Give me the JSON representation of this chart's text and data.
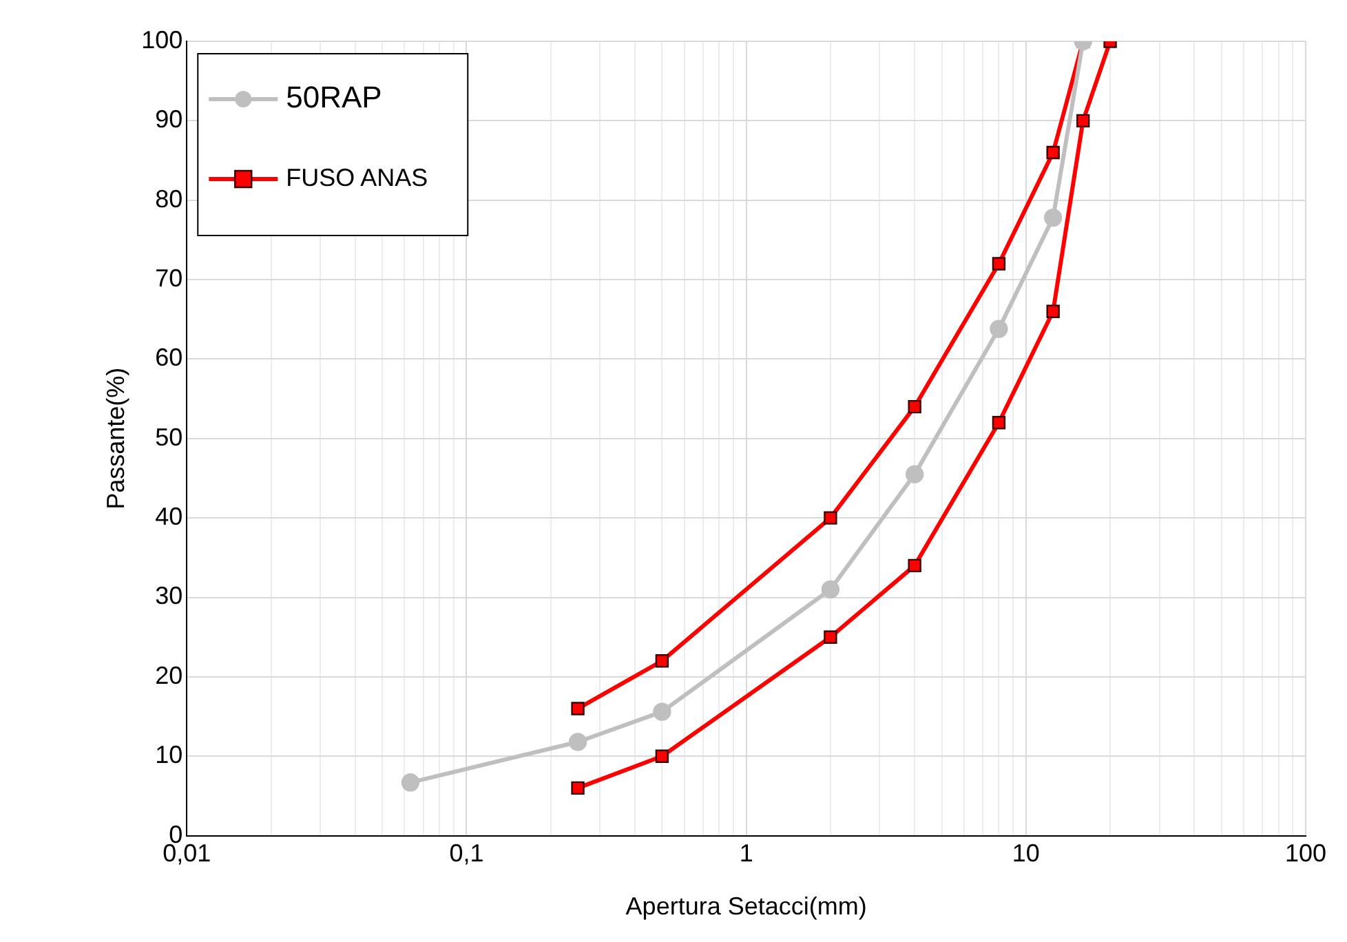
{
  "chart_data": {
    "type": "line",
    "xlabel": "Apertura Setacci(mm)",
    "ylabel": "Passante(%)",
    "log": "x",
    "xlim": [
      0.01,
      100
    ],
    "xticks": [
      {
        "value": 0.01,
        "label": "0,01"
      },
      {
        "value": 0.1,
        "label": "0,1"
      },
      1,
      10,
      100
    ],
    "ylim": [
      0,
      100
    ],
    "yticks": [
      0,
      10,
      20,
      30,
      40,
      50,
      60,
      70,
      80,
      90,
      100
    ],
    "grid": true,
    "legend": "top left",
    "series": [
      {
        "name": "50RAP",
        "color": "#bfbfbf",
        "marker": "circle",
        "x": [
          0.063,
          0.25,
          0.5,
          2,
          4,
          8,
          12.5,
          16
        ],
        "values": [
          6.7,
          11.8,
          15.6,
          31,
          45.5,
          63.8,
          77.8,
          100
        ]
      },
      {
        "name": "FUSO ANAS",
        "color": "#ff0000",
        "marker": "square",
        "x": [
          0.25,
          0.5,
          2,
          4,
          8,
          12.5,
          16
        ],
        "values": [
          16,
          22,
          40,
          54,
          72,
          86,
          100
        ]
      },
      {
        "color": "#ff0000",
        "marker": "square",
        "x": [
          0.25,
          0.5,
          2,
          4,
          8,
          12.5,
          16,
          20
        ],
        "values": [
          6,
          10,
          25,
          34,
          52,
          66,
          90,
          100
        ]
      }
    ]
  }
}
